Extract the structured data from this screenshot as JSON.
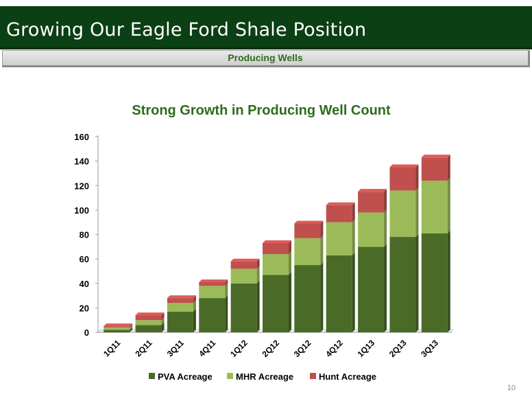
{
  "slide": {
    "title": "Growing Our Eagle Ford Shale Position",
    "subtitle": "Producing Wells",
    "page_number": "10"
  },
  "chart_data": {
    "type": "bar",
    "stacked": true,
    "title": "Strong Growth in Producing Well Count",
    "xlabel": "",
    "ylabel": "",
    "categories": [
      "1Q11",
      "2Q11",
      "3Q11",
      "4Q11",
      "1Q12",
      "2Q12",
      "3Q12",
      "4Q12",
      "1Q13",
      "2Q13",
      "3Q13"
    ],
    "series": [
      {
        "name": "PVA Acreage",
        "color": "#4a6b27",
        "values": [
          2,
          6,
          17,
          28,
          40,
          47,
          55,
          63,
          70,
          78,
          81
        ]
      },
      {
        "name": "MHR Acreage",
        "color": "#9bbb59",
        "values": [
          2,
          4,
          7,
          10,
          12,
          17,
          22,
          27,
          28,
          38,
          43
        ]
      },
      {
        "name": "Hunt Acreage",
        "color": "#c0504d",
        "values": [
          1,
          4,
          4,
          3,
          6,
          9,
          12,
          14,
          17,
          19,
          19
        ]
      }
    ],
    "ylim": [
      0,
      160
    ],
    "yticks": [
      "0",
      "20",
      "40",
      "60",
      "80",
      "100",
      "120",
      "140",
      "160"
    ],
    "grid": false,
    "legend": "bottom"
  }
}
